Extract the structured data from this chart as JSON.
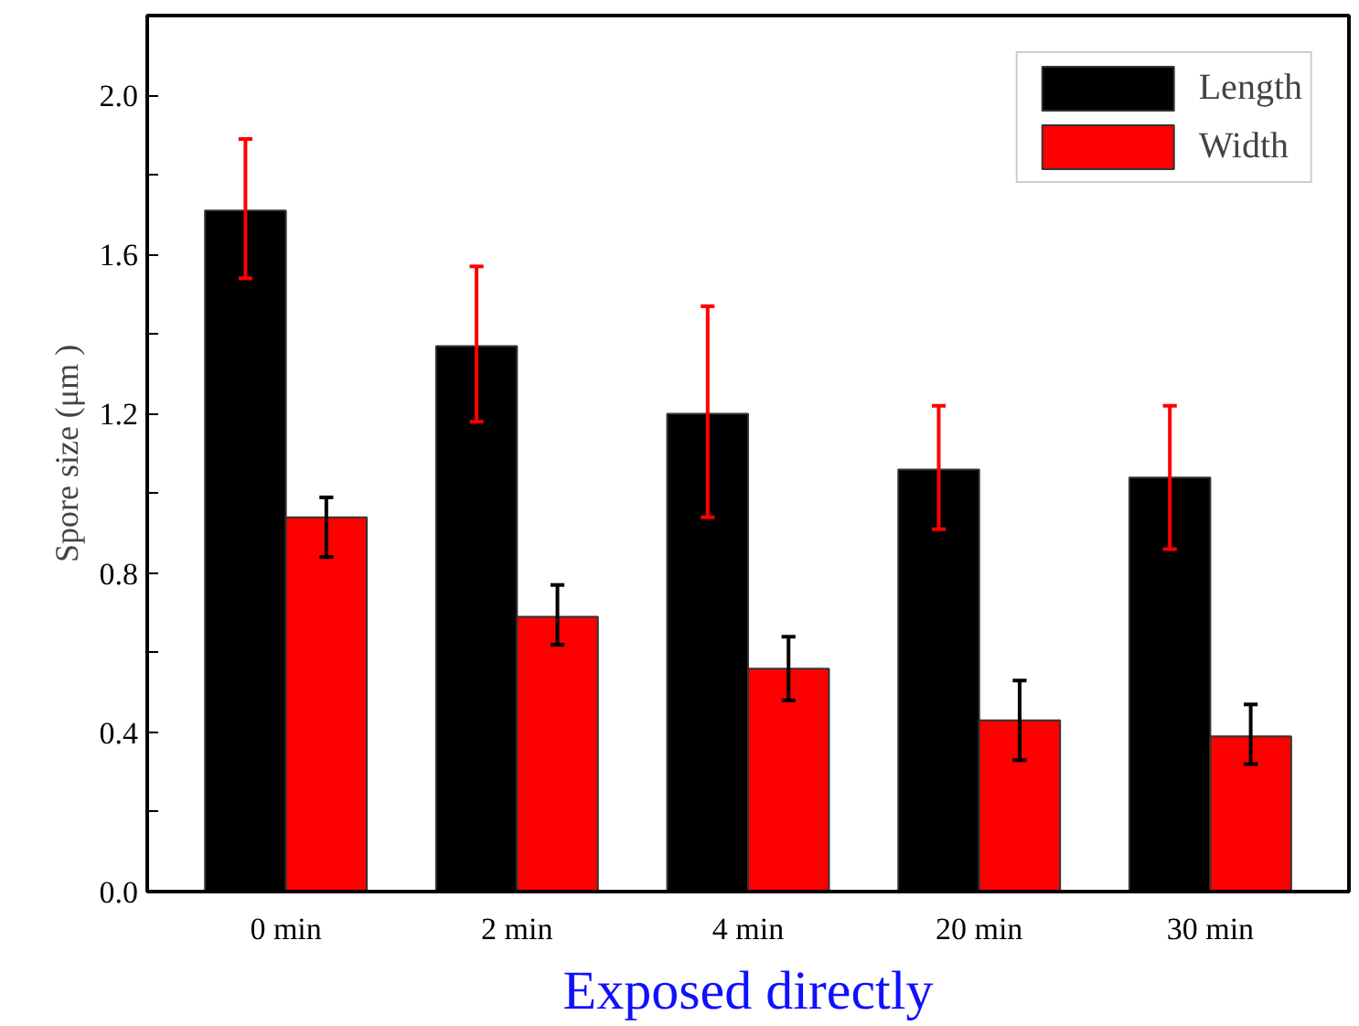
{
  "chart_data": {
    "type": "bar",
    "xlabel": "Exposed directly",
    "ylabel": "Spore size (μm )",
    "categories": [
      "0 min",
      "2 min",
      "4 min",
      "20 min",
      "30 min"
    ],
    "series": [
      {
        "name": "Length",
        "color": "#000000",
        "values": [
          1.71,
          1.37,
          1.2,
          1.06,
          1.04
        ],
        "errors": [
          [
            1.54,
            1.89
          ],
          [
            1.18,
            1.57
          ],
          [
            0.94,
            1.47
          ],
          [
            0.91,
            1.22
          ],
          [
            0.86,
            1.22
          ]
        ]
      },
      {
        "name": "Width",
        "color": "#ff0000",
        "values": [
          0.94,
          0.69,
          0.56,
          0.43,
          0.39
        ],
        "errors": [
          [
            0.84,
            0.99
          ],
          [
            0.62,
            0.77
          ],
          [
            0.48,
            0.64
          ],
          [
            0.33,
            0.53
          ],
          [
            0.32,
            0.47
          ]
        ]
      }
    ],
    "ylim": [
      0,
      2.2
    ],
    "yticks": [
      {
        "value": 0,
        "label": "0.0"
      },
      {
        "value": 0.2,
        "label": null
      },
      {
        "value": 0.4,
        "label": "0.4"
      },
      {
        "value": 0.6,
        "label": null
      },
      {
        "value": 0.8,
        "label": "0.8"
      },
      {
        "value": 1.0,
        "label": null
      },
      {
        "value": 1.2,
        "label": "1.2"
      },
      {
        "value": 1.4,
        "label": null
      },
      {
        "value": 1.6,
        "label": "1.6"
      },
      {
        "value": 1.8,
        "label": null
      },
      {
        "value": 2.0,
        "label": "2.0"
      }
    ],
    "grid": false,
    "legend": "top right"
  }
}
